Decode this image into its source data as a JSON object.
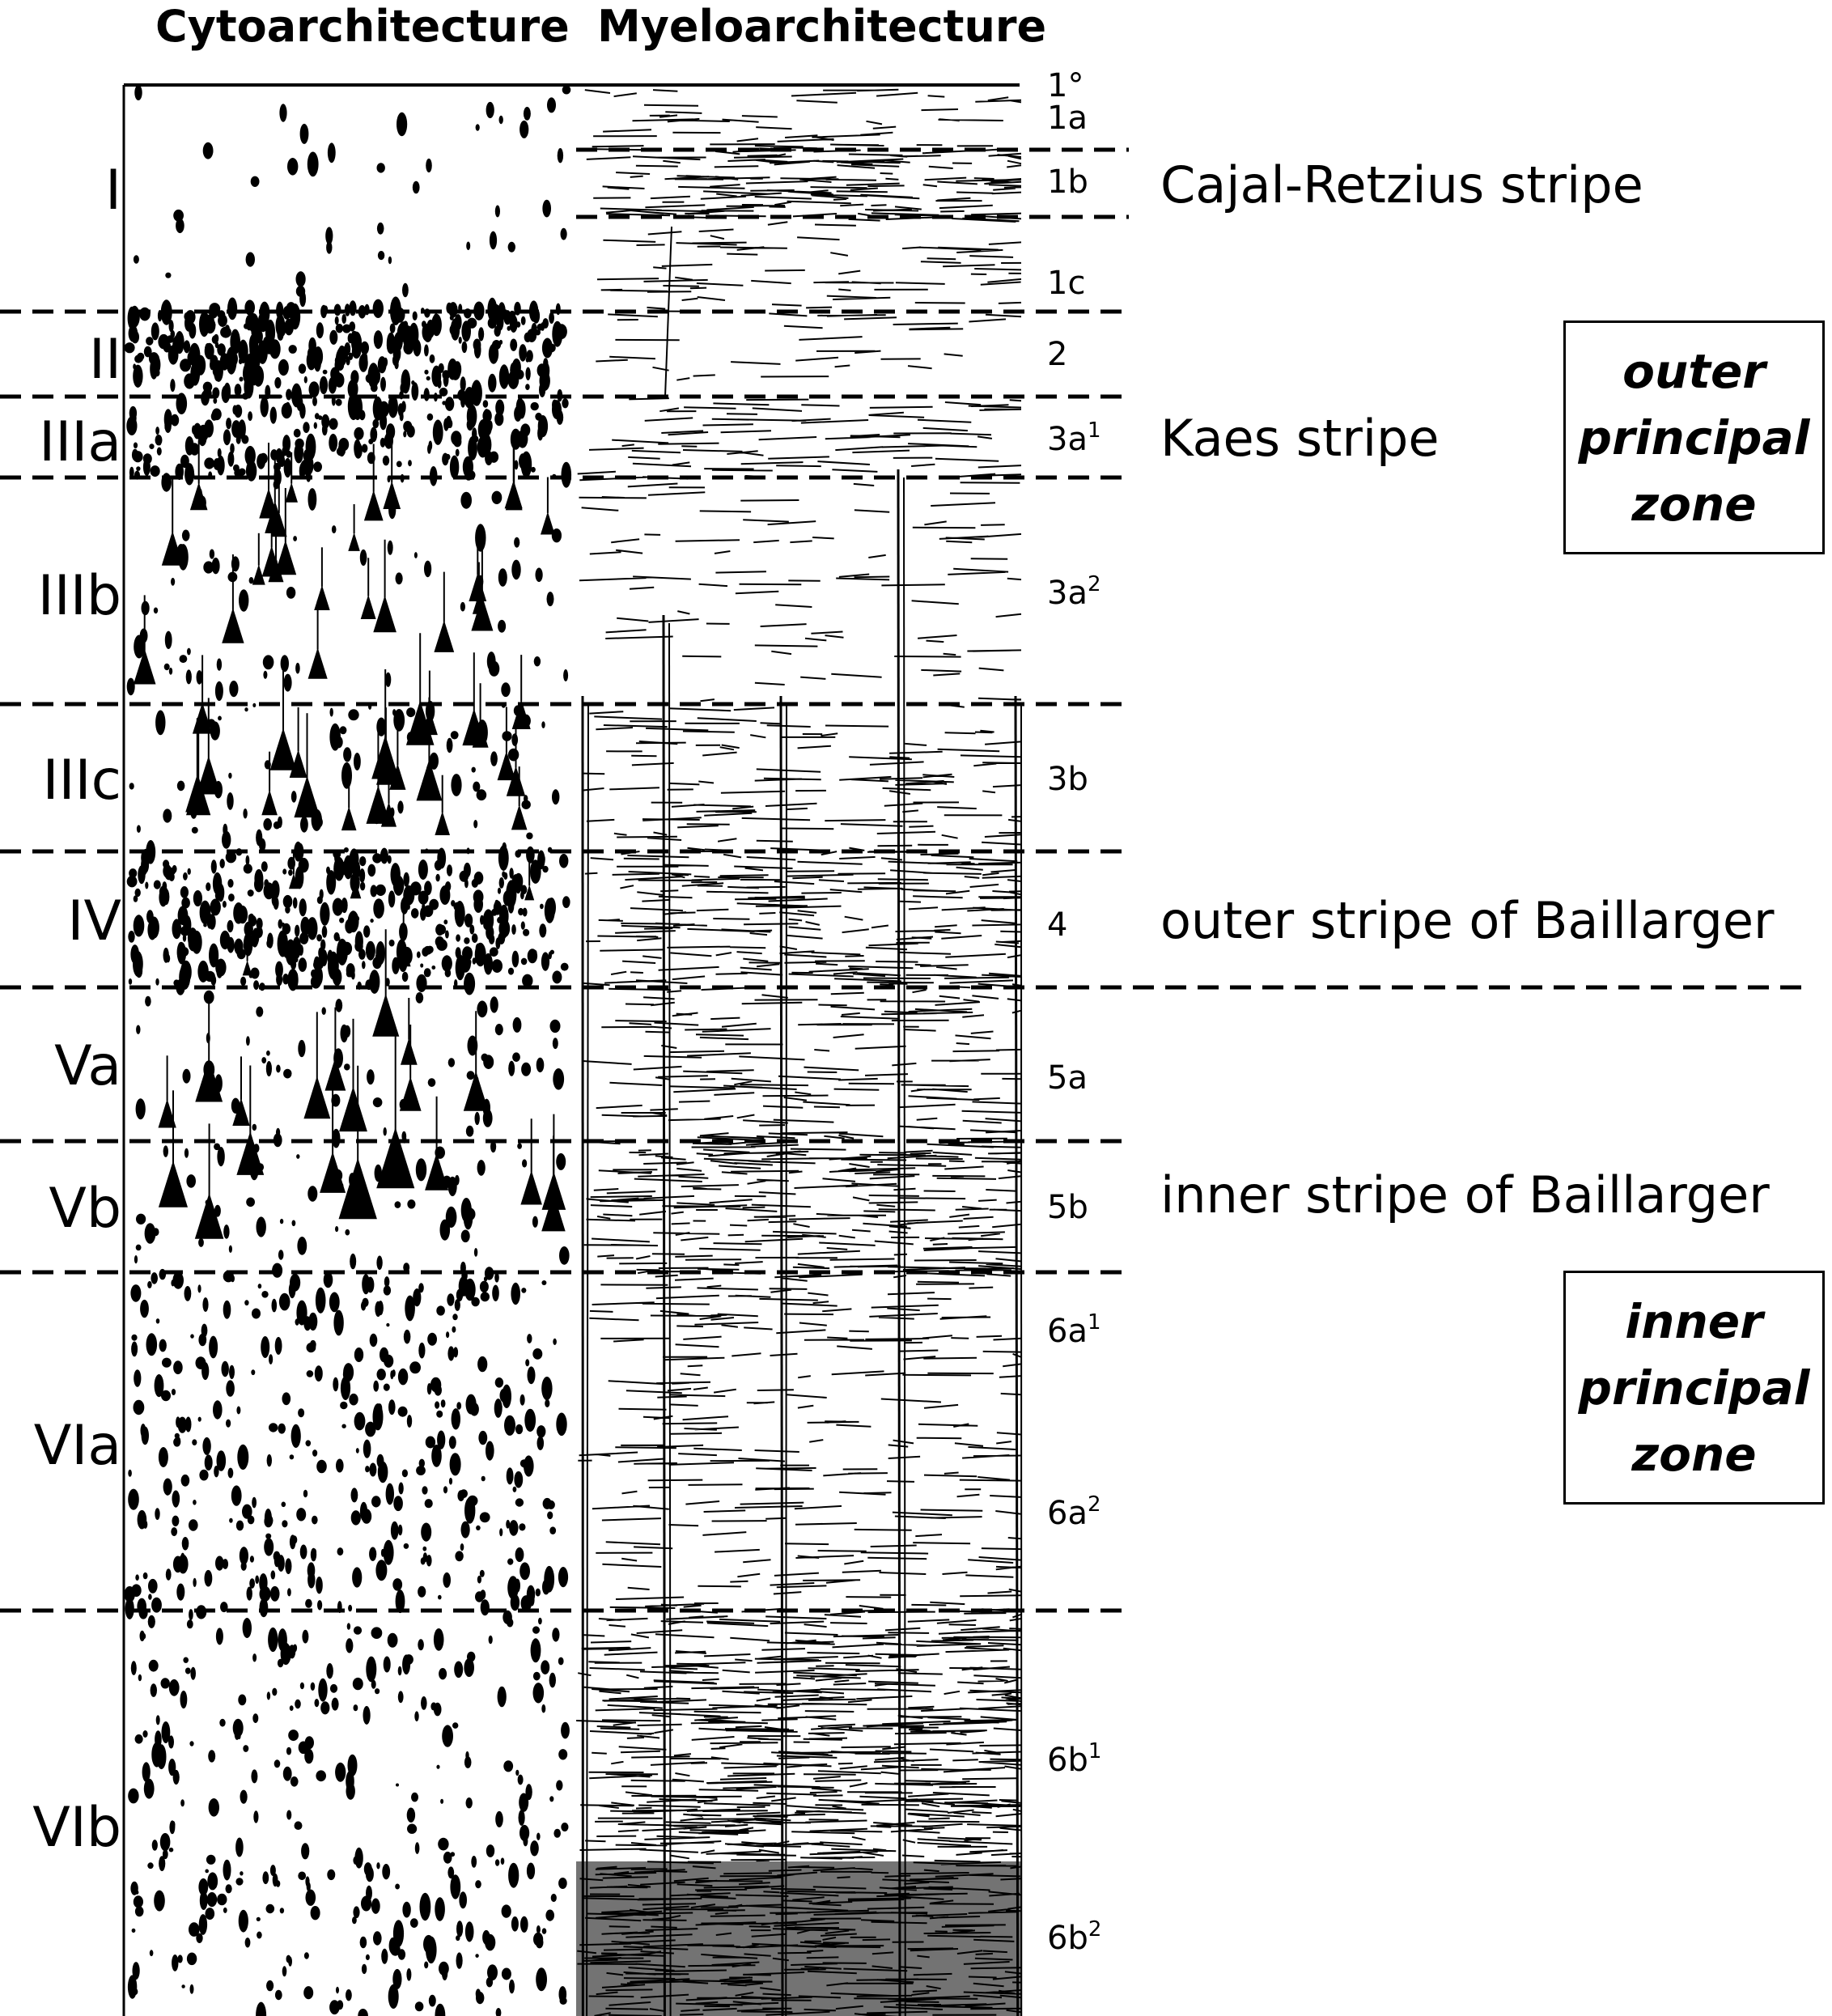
{
  "headers": {
    "cyto": "Cytoarchitecture",
    "myelo": "Myeloarchitecture"
  },
  "layers": [
    {
      "label": "I"
    },
    {
      "label": "II"
    },
    {
      "label": "IIIa"
    },
    {
      "label": "IIIb"
    },
    {
      "label": "IIIc"
    },
    {
      "label": "IV"
    },
    {
      "label": "Va"
    },
    {
      "label": "Vb"
    },
    {
      "label": "VIa"
    },
    {
      "label": "VIb"
    }
  ],
  "sublayers": [
    {
      "base": "1°",
      "sup": ""
    },
    {
      "base": "1a",
      "sup": ""
    },
    {
      "base": "1b",
      "sup": ""
    },
    {
      "base": "1c",
      "sup": ""
    },
    {
      "base": "2",
      "sup": ""
    },
    {
      "base": "3a",
      "sup": "1"
    },
    {
      "base": "3a",
      "sup": "2"
    },
    {
      "base": "3b",
      "sup": ""
    },
    {
      "base": "4",
      "sup": ""
    },
    {
      "base": "5a",
      "sup": ""
    },
    {
      "base": "5b",
      "sup": ""
    },
    {
      "base": "6a",
      "sup": "1"
    },
    {
      "base": "6a",
      "sup": "2"
    },
    {
      "base": "6b",
      "sup": "1"
    },
    {
      "base": "6b",
      "sup": "2"
    }
  ],
  "stripes": [
    {
      "label": "Cajal-Retzius stripe"
    },
    {
      "label": "Kaes stripe"
    },
    {
      "label": "outer stripe of Baillarger"
    },
    {
      "label": "inner stripe of Baillarger"
    }
  ],
  "zones": [
    {
      "lines": [
        "outer",
        "principal",
        "zone"
      ]
    },
    {
      "lines": [
        "inner",
        "principal",
        "zone"
      ]
    }
  ]
}
